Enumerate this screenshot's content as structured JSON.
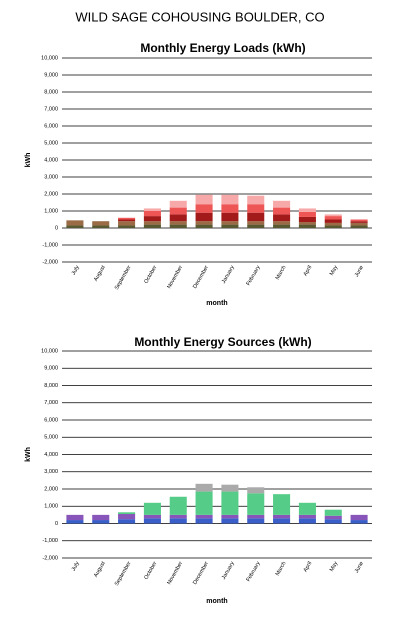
{
  "title": "WILD SAGE COHOUSING   BOULDER, CO",
  "chart_data": [
    {
      "type": "stacked_bar",
      "title": "Monthly Energy Loads (kWh)",
      "xlabel": "month",
      "ylabel": "kWh",
      "categories": [
        "July",
        "August",
        "September",
        "October",
        "November",
        "December",
        "January",
        "February",
        "March",
        "April",
        "May",
        "June"
      ],
      "series": [
        {
          "color": "#5a5a32",
          "values": [
            150,
            150,
            150,
            200,
            200,
            200,
            200,
            200,
            200,
            200,
            150,
            150
          ]
        },
        {
          "color": "#9a6b45",
          "values": [
            300,
            250,
            250,
            200,
            200,
            200,
            200,
            200,
            200,
            150,
            150,
            150
          ]
        },
        {
          "color": "#a31a1a",
          "values": [
            0,
            0,
            100,
            300,
            400,
            500,
            500,
            500,
            400,
            300,
            200,
            100
          ]
        },
        {
          "color": "#ee5555",
          "values": [
            0,
            0,
            100,
            300,
            400,
            500,
            500,
            500,
            400,
            300,
            200,
            100
          ]
        },
        {
          "color": "#f7a8a8",
          "values": [
            0,
            0,
            0,
            150,
            400,
            550,
            550,
            500,
            400,
            200,
            100,
            0
          ]
        }
      ],
      "ylim": [
        -2000,
        10000
      ],
      "yticks": [
        {
          "value": -2000,
          "label": "-2,000"
        },
        {
          "value": -1000,
          "label": "-1,000"
        },
        0,
        {
          "value": 1000,
          "label": "1,000"
        },
        {
          "value": 2000,
          "label": "2,000"
        },
        {
          "value": 3000,
          "label": "3,000"
        },
        {
          "value": 4000,
          "label": "4,000"
        },
        {
          "value": 5000,
          "label": "5,000"
        },
        {
          "value": 6000,
          "label": "6,000"
        },
        {
          "value": 7000,
          "label": "7,000"
        },
        {
          "value": 8000,
          "label": "8,000"
        },
        {
          "value": 9000,
          "label": "9,000"
        },
        {
          "value": 10000,
          "label": "10,000"
        }
      ],
      "grid": true
    },
    {
      "type": "stacked_bar",
      "title": "Monthly Energy Sources (kWh)",
      "xlabel": "month",
      "ylabel": "kWh",
      "categories": [
        "July",
        "August",
        "September",
        "October",
        "November",
        "December",
        "January",
        "February",
        "March",
        "April",
        "May",
        "June"
      ],
      "series": [
        {
          "color": "#3a5fc8",
          "values": [
            200,
            200,
            250,
            300,
            300,
            300,
            300,
            300,
            300,
            300,
            250,
            200
          ]
        },
        {
          "color": "#8855bb",
          "values": [
            300,
            300,
            300,
            200,
            200,
            200,
            200,
            200,
            200,
            200,
            200,
            300
          ]
        },
        {
          "color": "#55cc88",
          "values": [
            0,
            0,
            100,
            700,
            1050,
            1350,
            1350,
            1250,
            1200,
            700,
            350,
            0
          ]
        },
        {
          "color": "#aaaaaa",
          "values": [
            0,
            0,
            0,
            0,
            0,
            450,
            400,
            350,
            0,
            0,
            0,
            0
          ]
        }
      ],
      "ylim": [
        -2000,
        10000
      ],
      "yticks": [
        {
          "value": -2000,
          "label": "-2,000"
        },
        {
          "value": -1000,
          "label": "-1,000"
        },
        0,
        {
          "value": 1000,
          "label": "1,000"
        },
        {
          "value": 2000,
          "label": "2,000"
        },
        {
          "value": 3000,
          "label": "3,000"
        },
        {
          "value": 4000,
          "label": "4,000"
        },
        {
          "value": 5000,
          "label": "5,000"
        },
        {
          "value": 6000,
          "label": "6,000"
        },
        {
          "value": 7000,
          "label": "7,000"
        },
        {
          "value": 8000,
          "label": "8,000"
        },
        {
          "value": 9000,
          "label": "9,000"
        },
        {
          "value": 10000,
          "label": "10,000"
        }
      ],
      "grid": true
    }
  ]
}
